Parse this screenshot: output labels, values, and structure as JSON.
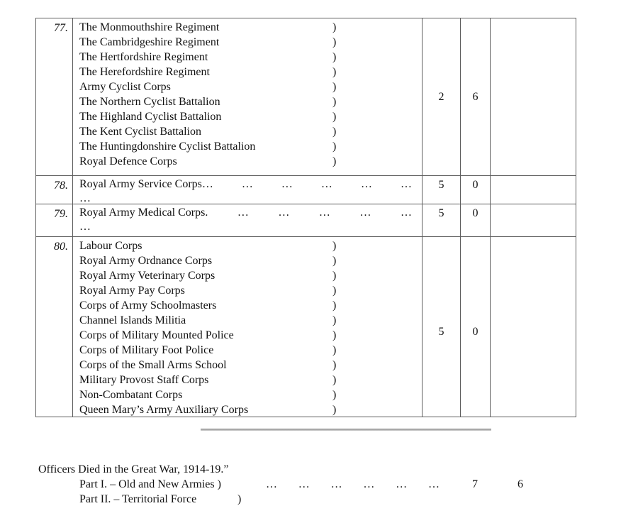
{
  "page": {
    "background": "#ffffff",
    "text_color": "#111111",
    "table_border_color": "#5d5d5d",
    "divider_color": "#8c8c8c"
  },
  "table": {
    "rows": [
      {
        "number": "77.",
        "brace": ")",
        "units": [
          "The Monmouthshire Regiment",
          "The Cambridgeshire Regiment",
          "The Hertfordshire Regiment",
          "The Herefordshire Regiment",
          "Army Cyclist Corps",
          "The Northern Cyclist Battalion",
          "The Highland Cyclist Battalion",
          "The Kent Cyclist Battalion",
          "The Huntingdonshire Cyclist Battalion",
          "Royal Defence Corps"
        ],
        "shillings": "2",
        "pence": "6",
        "notes": ""
      },
      {
        "number": "78.",
        "name": "Royal Army Service Corps…",
        "dots": [
          "…",
          "…",
          "…",
          "…",
          "…"
        ],
        "wrap_dots": "…",
        "shillings": "5",
        "pence": "0",
        "notes": ""
      },
      {
        "number": "79.",
        "name": "Royal Army Medical Corps.",
        "dots": [
          "…",
          "…",
          "…",
          "…",
          "…"
        ],
        "wrap_dots": "…",
        "shillings": "5",
        "pence": "0",
        "notes": ""
      },
      {
        "number": "80.",
        "brace": ")",
        "units": [
          "Labour Corps",
          "Royal Army Ordnance Corps",
          "Royal Army Veterinary Corps",
          "Royal Army Pay Corps",
          "Corps of Army Schoolmasters",
          "Channel Islands Militia",
          "Corps of Military Mounted Police",
          "Corps of Military Foot Police",
          "Corps of the Small Arms School",
          "Military Provost Staff Corps",
          "Non-Combatant Corps",
          "Queen Mary’s Army Auxiliary Corps"
        ],
        "shillings": "5",
        "pence": "0",
        "notes": ""
      }
    ]
  },
  "footer": {
    "title": "Officers Died in the Great War, 1914-19.”",
    "part1_label": "Part I. – Old and New Armies )",
    "part1_dots": [
      "…",
      "…",
      "…",
      "…",
      "…",
      "…"
    ],
    "part1_shillings": "7",
    "part1_pence": "6",
    "part2_label": "Part II. – Territorial Force",
    "part2_brace": ")"
  }
}
